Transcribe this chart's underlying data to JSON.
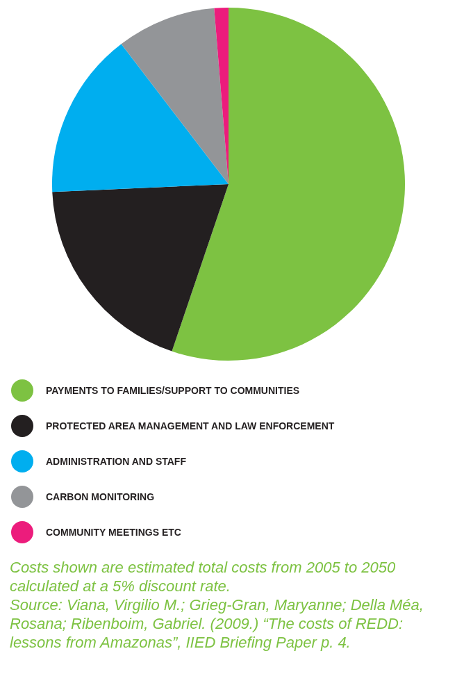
{
  "chart_data": {
    "type": "pie",
    "categories": [
      "PAYMENTS TO FAMILIES/SUPPORT TO COMMUNITIES",
      "PROTECTED AREA MANAGEMENT AND LAW ENFORCEMENT",
      "ADMINISTRATION AND STAFF",
      "CARBON MONITORING",
      "COMMUNITY MEETINGS ETC"
    ],
    "values": [
      55.2,
      19.1,
      15.3,
      9.1,
      1.3
    ],
    "colors": [
      "#7dc242",
      "#231f20",
      "#00aeef",
      "#939598",
      "#ec1c7c"
    ],
    "legend": "bottom left",
    "annotations": [
      "Costs shown are estimated total costs from 2005 to 2050 calculated at a 5% discount rate.",
      "Source: Viana, Virgilio M.; Grieg-Gran, Maryanne; Della Méa, Rosana; Ribenboim, Gabriel. (2009.) “The costs of REDD: lessons from Amazonas”, IIED Briefing Paper p. 4."
    ]
  }
}
